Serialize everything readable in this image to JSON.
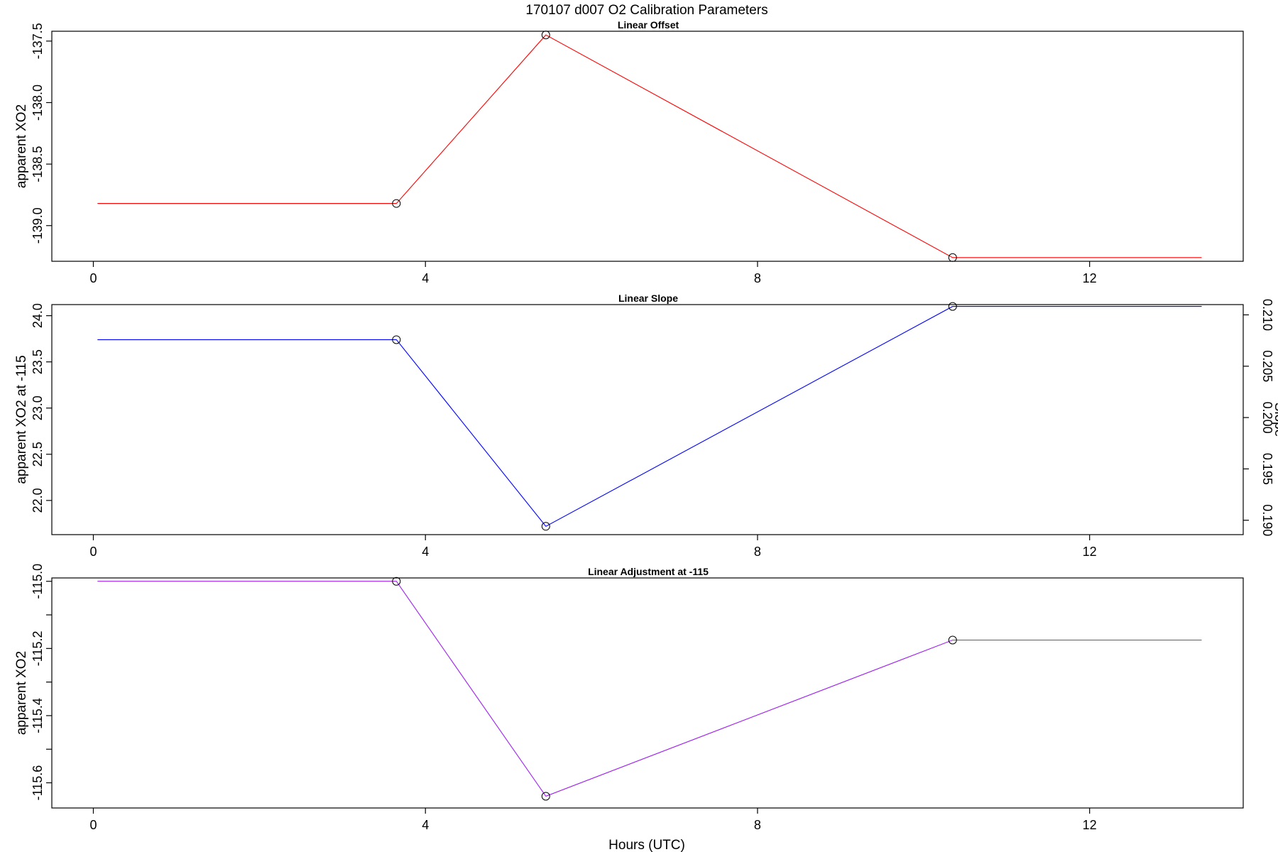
{
  "figure": {
    "title": "170107   d007   O2 Calibration Parameters",
    "xlabel": "Hours (UTC)"
  },
  "chart_data": [
    {
      "type": "line",
      "title": "Linear Offset",
      "xlabel": "",
      "ylabel": "apparent XO2",
      "xlim": [
        -0.5,
        13.85
      ],
      "ylim": [
        -139.29,
        -137.42
      ],
      "x_ticks": [
        0,
        4,
        8,
        12
      ],
      "x_tick_labels": [
        "0",
        "4",
        "8",
        "12"
      ],
      "y_ticks": [
        -139.0,
        -138.5,
        -138.0,
        -137.5
      ],
      "y_tick_labels": [
        "-139.0",
        "-138.5",
        "-138.0",
        "-137.5"
      ],
      "color": "#ff0000",
      "grid": false,
      "points": [
        {
          "x": 0.05,
          "y": -138.82
        },
        {
          "x": 3.65,
          "y": -138.82
        },
        {
          "x": 5.45,
          "y": -137.45
        },
        {
          "x": 10.35,
          "y": -139.26
        },
        {
          "x": 13.35,
          "y": -139.26
        }
      ],
      "markers": [
        {
          "x": 3.65,
          "y": -138.82
        },
        {
          "x": 5.45,
          "y": -137.45
        },
        {
          "x": 10.35,
          "y": -139.26
        }
      ]
    },
    {
      "type": "line",
      "title": "Linear Slope",
      "xlabel": "",
      "ylabel": "apparent XO2 at -115",
      "ylabel_right": "Slope",
      "xlim": [
        -0.5,
        13.85
      ],
      "ylim": [
        21.63,
        24.12
      ],
      "ylim_right": [
        0.1886,
        0.211
      ],
      "x_ticks": [
        0,
        4,
        8,
        12
      ],
      "x_tick_labels": [
        "0",
        "4",
        "8",
        "12"
      ],
      "y_ticks": [
        22.0,
        22.5,
        23.0,
        23.5,
        24.0
      ],
      "y_tick_labels": [
        "22.0",
        "22.5",
        "23.0",
        "23.5",
        "24.0"
      ],
      "y_ticks_right": [
        0.19,
        0.195,
        0.2,
        0.205,
        0.21
      ],
      "y_tick_labels_right": [
        "0.190",
        "0.195",
        "0.200",
        "0.205",
        "0.210"
      ],
      "color": "#0000ff",
      "grid": false,
      "points": [
        {
          "x": 0.05,
          "y": 23.74
        },
        {
          "x": 3.65,
          "y": 23.74
        },
        {
          "x": 5.45,
          "y": 21.72
        },
        {
          "x": 10.35,
          "y": 24.1
        },
        {
          "x": 13.35,
          "y": 24.1
        }
      ],
      "markers": [
        {
          "x": 3.65,
          "y": 23.74
        },
        {
          "x": 5.45,
          "y": 21.72
        },
        {
          "x": 10.35,
          "y": 24.1
        }
      ]
    },
    {
      "type": "line",
      "title": "Linear Adjustment at -115",
      "xlabel": "Hours (UTC)",
      "ylabel": "apparent XO2",
      "xlim": [
        -0.5,
        13.85
      ],
      "ylim": [
        -115.675,
        -114.99
      ],
      "x_ticks": [
        0,
        4,
        8,
        12
      ],
      "x_tick_labels": [
        "0",
        "4",
        "8",
        "12"
      ],
      "y_ticks": [
        -115.6,
        -115.5,
        -115.4,
        -115.3,
        -115.2,
        -115.1,
        -115.0
      ],
      "y_tick_labels": [
        "-115.6",
        "",
        "-115.4",
        "",
        "-115.2",
        "",
        "-115.0"
      ],
      "color": "#a020f0",
      "grid": false,
      "points": [
        {
          "x": 0.05,
          "y": -115.0
        },
        {
          "x": 3.65,
          "y": -115.0
        },
        {
          "x": 5.45,
          "y": -115.64
        },
        {
          "x": 10.35,
          "y": -115.175
        },
        {
          "x": 13.35,
          "y": -115.175
        }
      ],
      "markers": [
        {
          "x": 3.65,
          "y": -115.0
        },
        {
          "x": 5.45,
          "y": -115.64
        },
        {
          "x": 10.35,
          "y": -115.175
        }
      ]
    }
  ]
}
